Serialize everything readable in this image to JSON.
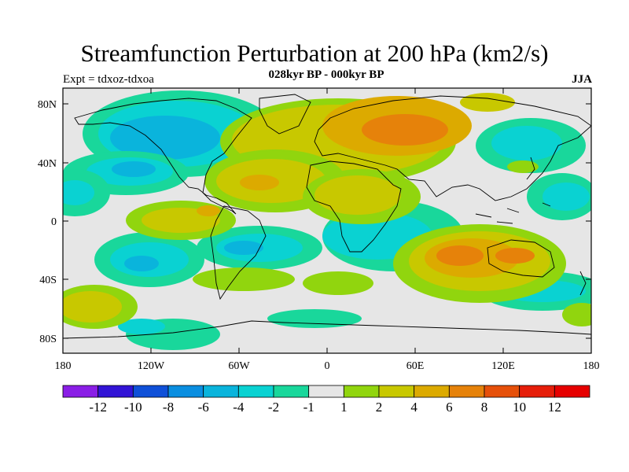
{
  "title": "Streamfunction Perturbation at 200 hPa (km2/s)",
  "subtitle": "028kyr BP - 000kyr BP",
  "left_label": "Expt = tdxoz-tdxoa",
  "right_label": "JJA",
  "lat_ticks": [
    "80N",
    "40N",
    "0",
    "40S",
    "80S"
  ],
  "lon_ticks": [
    "180",
    "120W",
    "60W",
    "0",
    "60E",
    "120E",
    "180"
  ],
  "colorbar": {
    "colors": [
      "#8a1ee6",
      "#3214d6",
      "#0f50d8",
      "#0a8ee0",
      "#0ab4dc",
      "#0ad2d2",
      "#19d79b",
      "#e6e6e6",
      "#91d50e",
      "#c8c800",
      "#dcaa00",
      "#e6820a",
      "#e6500a",
      "#e61e0a",
      "#e60000"
    ],
    "labels": [
      "-12",
      "-10",
      "-8",
      "-6",
      "-4",
      "-2",
      "-1",
      "1",
      "2",
      "4",
      "6",
      "8",
      "10",
      "12"
    ]
  },
  "legend_colors": {
    "neutral": "#e6e6e6",
    "coastline": "#000000"
  }
}
